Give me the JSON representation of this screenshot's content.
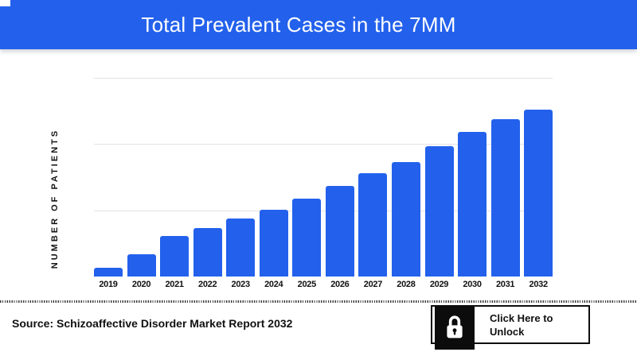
{
  "header": {
    "title": "Total Prevalent Cases in the 7MM",
    "bg_color": "#2361ec",
    "text_color": "#ffffff"
  },
  "chart_data": {
    "type": "bar",
    "title": "Total Prevalent Cases in the 7MM",
    "categories": [
      "2019",
      "2020",
      "2021",
      "2022",
      "2023",
      "2024",
      "2025",
      "2026",
      "2027",
      "2028",
      "2029",
      "2030",
      "2031",
      "2032"
    ],
    "values": [
      0.13,
      0.33,
      0.61,
      0.73,
      0.88,
      1.01,
      1.18,
      1.37,
      1.56,
      1.73,
      1.97,
      2.18,
      2.37,
      2.52
    ],
    "value_unit": "relative units; 1 unit = one gridline interval (y-axis numeric labels are hidden/locked in source)",
    "xlabel": "",
    "ylabel": "NUMBER OF PATIENTS",
    "ylim": [
      0,
      3.0
    ],
    "y_tick_labels": [],
    "gridline_values": [
      1,
      2,
      3
    ],
    "grid": true,
    "legend": false,
    "bar_color": "#2361ec",
    "gridline_color": "#e3e3e3"
  },
  "footer": {
    "source_text": "Source: Schizoaffective Disorder Market Report 2032",
    "unlock_button": {
      "label_line1": "Click Here to",
      "label_line2": "Unlock",
      "icon": "lock-icon"
    }
  }
}
